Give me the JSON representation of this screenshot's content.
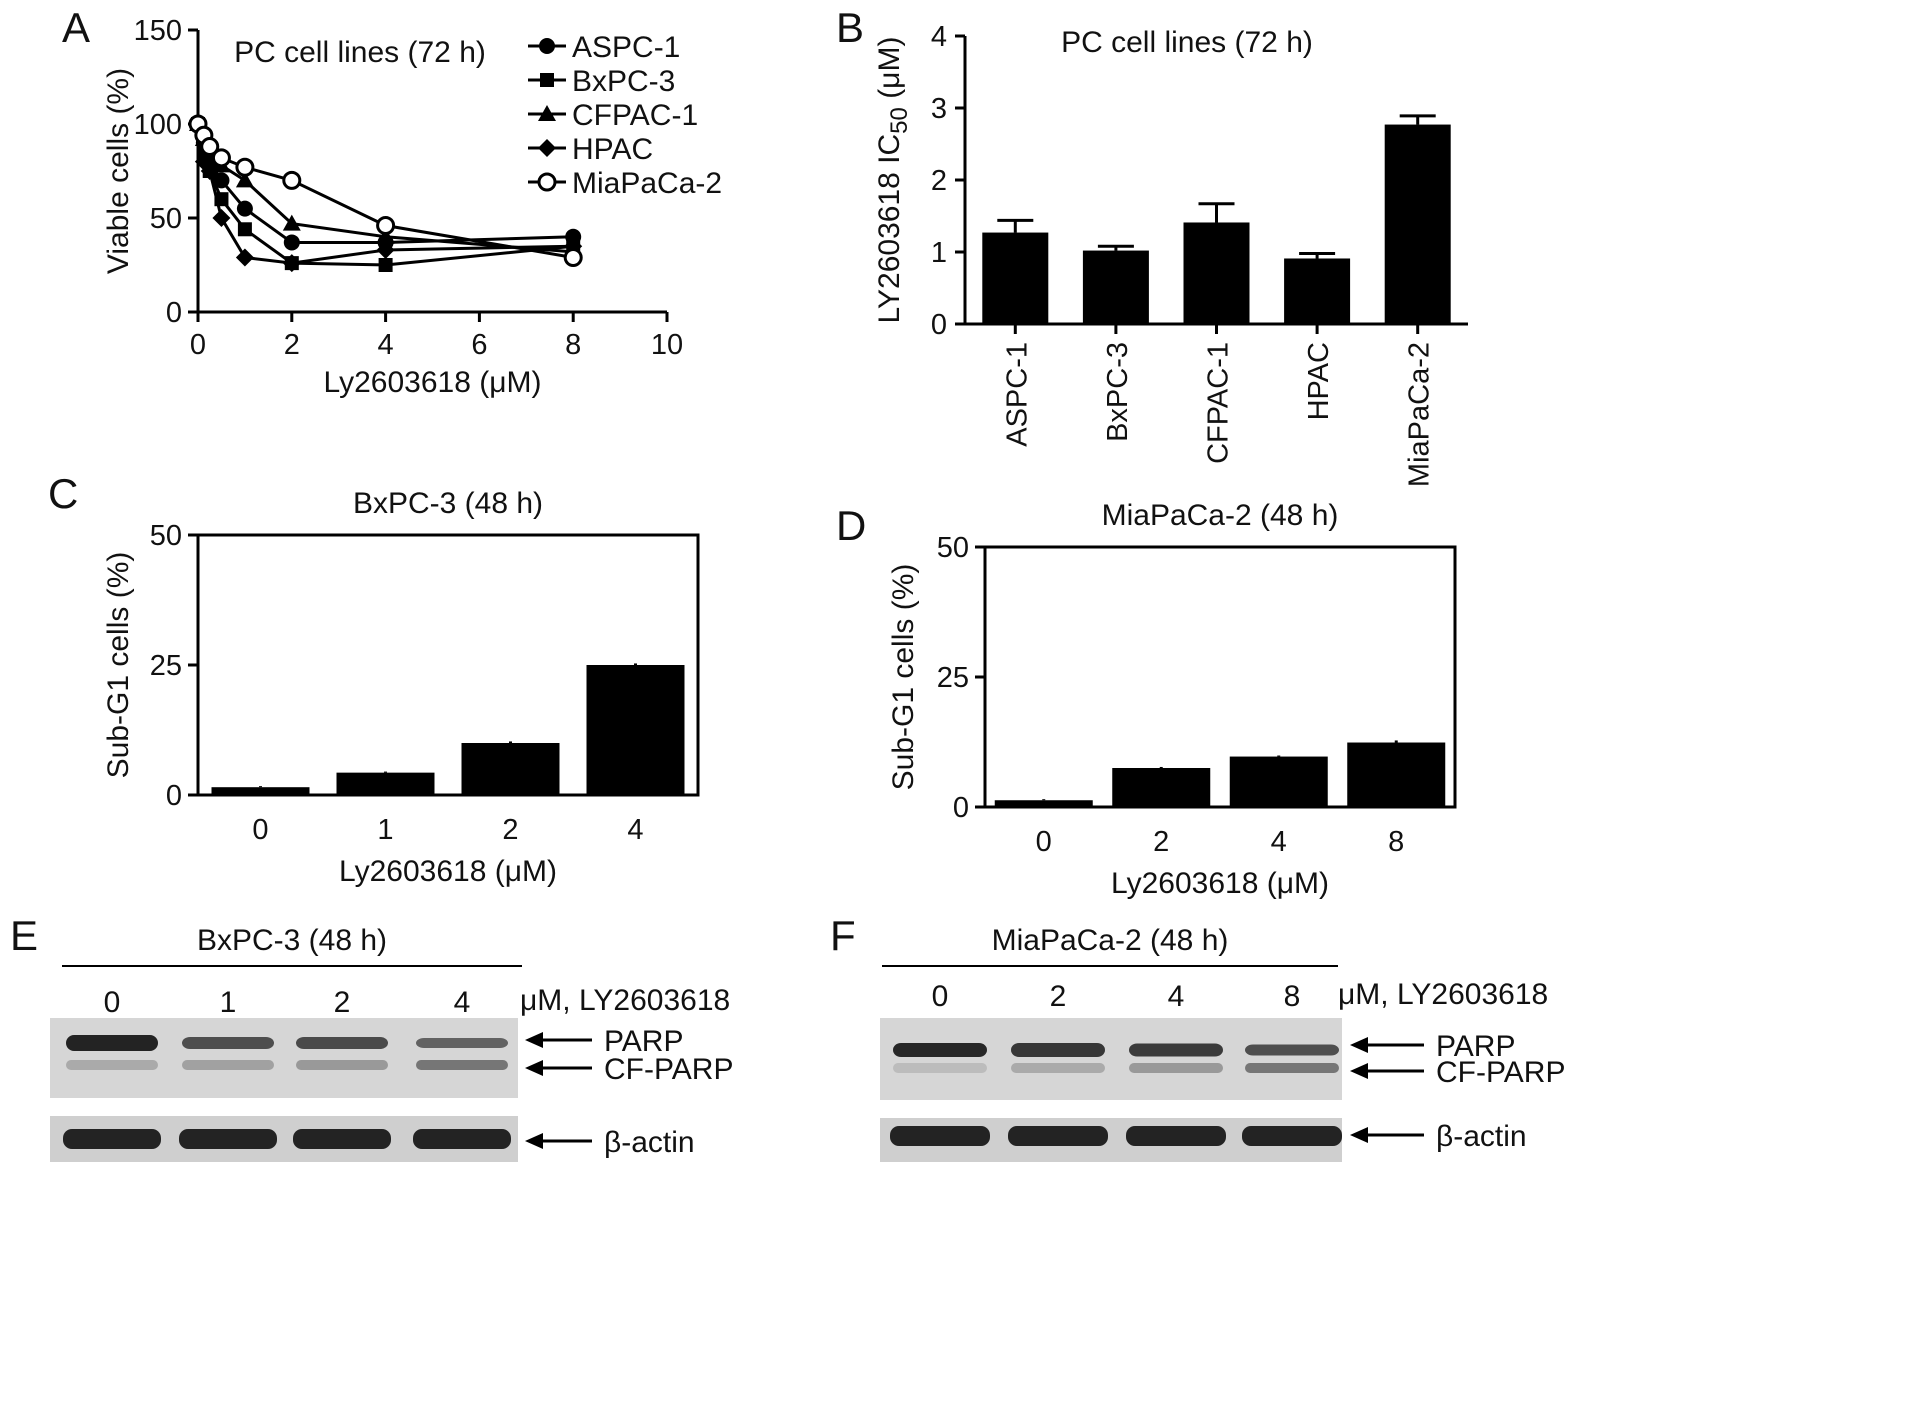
{
  "chart_data": [
    {
      "panel": "A",
      "type": "line",
      "title": "PC cell lines (72 h)",
      "xlabel": "Ly2603618 (μM)",
      "ylabel": "Viable cells (%)",
      "xlim": [
        0,
        10
      ],
      "ylim": [
        0,
        150
      ],
      "xticks": [
        0,
        2,
        4,
        6,
        8,
        10
      ],
      "yticks": [
        0,
        50,
        100,
        150
      ],
      "legend": "top-right",
      "series": [
        {
          "name": "ASPC-1",
          "marker": "circle",
          "x": [
            0,
            0.125,
            0.25,
            0.5,
            1,
            2,
            4,
            8
          ],
          "y": [
            100,
            90,
            80,
            70,
            55,
            37,
            37,
            40
          ]
        },
        {
          "name": "BxPC-3",
          "marker": "square",
          "x": [
            0,
            0.125,
            0.25,
            0.5,
            1,
            2,
            4,
            8
          ],
          "y": [
            100,
            85,
            75,
            60,
            44,
            26,
            25,
            35
          ]
        },
        {
          "name": "CFPAC-1",
          "marker": "triangle",
          "x": [
            0,
            0.125,
            0.25,
            0.5,
            1,
            2,
            4,
            8
          ],
          "y": [
            100,
            92,
            85,
            78,
            70,
            47,
            40,
            32
          ]
        },
        {
          "name": "HPAC",
          "marker": "diamond",
          "x": [
            0,
            0.125,
            0.25,
            0.5,
            1,
            2,
            4,
            8
          ],
          "y": [
            100,
            80,
            75,
            50,
            29,
            26,
            33,
            35
          ]
        },
        {
          "name": "MiaPaCa-2",
          "marker": "open-circle",
          "x": [
            0,
            0.125,
            0.25,
            0.5,
            1,
            2,
            4,
            8
          ],
          "y": [
            100,
            94,
            88,
            82,
            77,
            70,
            46,
            29
          ]
        }
      ]
    },
    {
      "panel": "B",
      "type": "bar",
      "title": "PC cell lines (72 h)",
      "ylabel": "LY2603618 IC50 (μM)",
      "ylim": [
        0,
        4
      ],
      "yticks": [
        0,
        1,
        2,
        3,
        4
      ],
      "categories": [
        "ASPC-1",
        "BxPC-3",
        "CFPAC-1",
        "HPAC",
        "MiaPaCa-2"
      ],
      "values": [
        1.27,
        1.02,
        1.41,
        0.91,
        2.77
      ],
      "errors": [
        0.17,
        0.06,
        0.26,
        0.07,
        0.12
      ]
    },
    {
      "panel": "C",
      "type": "bar",
      "title": "BxPC-3 (48 h)",
      "xlabel": "Ly2603618 (μM)",
      "ylabel": "Sub-G1 cells (%)",
      "ylim": [
        0,
        50
      ],
      "yticks": [
        0,
        25,
        50
      ],
      "categories": [
        "0",
        "1",
        "2",
        "4"
      ],
      "values": [
        1.5,
        4.3,
        10,
        25
      ],
      "errors": [
        0.2,
        0.2,
        0.3,
        0.3
      ]
    },
    {
      "panel": "D",
      "type": "bar",
      "title": "MiaPaCa-2 (48 h)",
      "xlabel": "Ly2603618 (μM)",
      "ylabel": "Sub-G1 cells (%)",
      "ylim": [
        0,
        50
      ],
      "yticks": [
        0,
        25,
        50
      ],
      "categories": [
        "0",
        "2",
        "4",
        "8"
      ],
      "values": [
        1.3,
        7.5,
        9.7,
        12.4
      ],
      "errors": [
        0.2,
        0.2,
        0.2,
        0.4
      ]
    }
  ],
  "blots": [
    {
      "panel": "E",
      "title": "BxPC-3 (48 h)",
      "lanes": [
        "0",
        "1",
        "2",
        "4"
      ],
      "unit_label": "μM, LY2603618",
      "band_labels": [
        "PARP",
        "CF-PARP",
        "β-actin"
      ]
    },
    {
      "panel": "F",
      "title": "MiaPaCa-2 (48 h)",
      "lanes": [
        "0",
        "2",
        "4",
        "8"
      ],
      "unit_label": "μM, LY2603618",
      "band_labels": [
        "PARP",
        "CF-PARP",
        "β-actin"
      ]
    }
  ]
}
